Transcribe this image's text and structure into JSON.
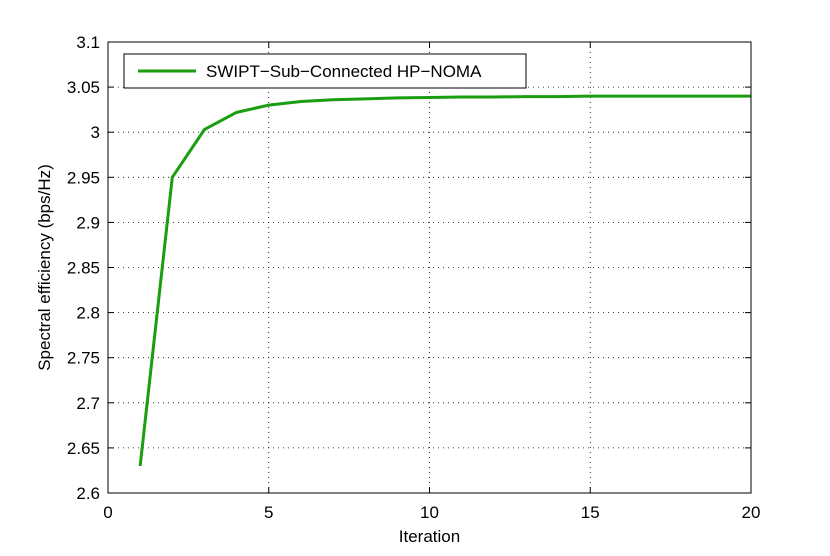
{
  "chart_data": {
    "type": "line",
    "title": "",
    "xlabel": "Iteration",
    "ylabel": "Spectral efficiency (bps/Hz)",
    "xlim": [
      0,
      20
    ],
    "ylim": [
      2.6,
      3.1
    ],
    "xticks": [
      0,
      5,
      10,
      15,
      20
    ],
    "xtick_labels": [
      "0",
      "5",
      "10",
      "15",
      "20"
    ],
    "yticks": [
      2.6,
      2.65,
      2.7,
      2.75,
      2.8,
      2.85,
      2.9,
      2.95,
      3.0,
      3.05,
      3.1
    ],
    "ytick_labels": [
      "2.6",
      "2.65",
      "2.7",
      "2.75",
      "2.8",
      "2.85",
      "2.9",
      "2.95",
      "3",
      "3.05",
      "3.1"
    ],
    "grid": true,
    "legend_position": "top-left",
    "series": [
      {
        "name": "SWIPT−Sub−Connected HP−NOMA",
        "color": "#1a9e10",
        "x": [
          1,
          2,
          3,
          4,
          5,
          6,
          7,
          8,
          9,
          10,
          11,
          12,
          13,
          14,
          15,
          16,
          17,
          18,
          19,
          20
        ],
        "y": [
          2.63,
          2.95,
          3.003,
          3.022,
          3.03,
          3.034,
          3.036,
          3.037,
          3.038,
          3.0385,
          3.039,
          3.039,
          3.0395,
          3.0395,
          3.04,
          3.04,
          3.04,
          3.04,
          3.04,
          3.04
        ]
      }
    ]
  }
}
